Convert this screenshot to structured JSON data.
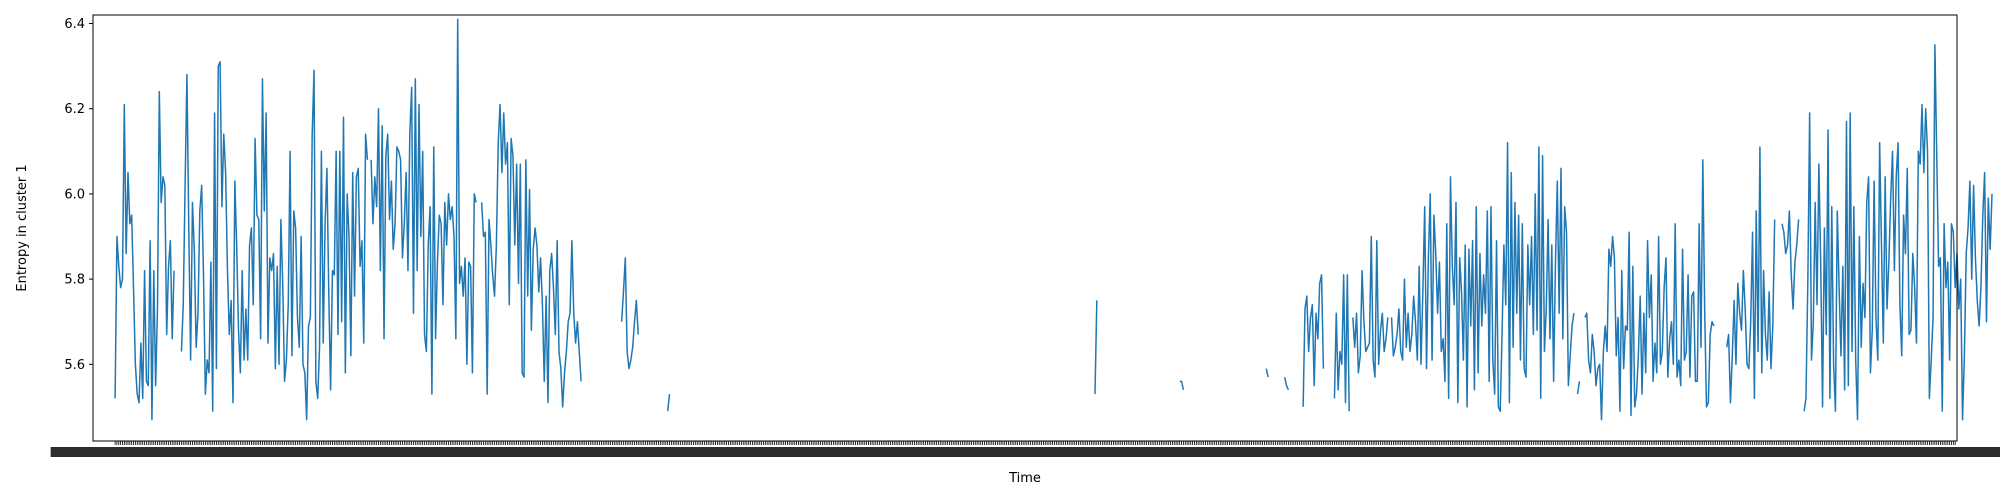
{
  "chart_data": {
    "type": "line",
    "title": "",
    "xlabel": "Time",
    "ylabel": "Entropy in cluster 1",
    "ylim": [
      5.42,
      6.42
    ],
    "yticks": [
      5.6,
      5.8,
      6.0,
      6.2,
      6.4
    ],
    "ytick_labels": [
      "5.6",
      "5.8",
      "6.0",
      "6.2",
      "6.4"
    ],
    "xlim": [
      -12,
      1000
    ],
    "grid": false,
    "legend": "none",
    "colors": {
      "line": "#1f77b4",
      "axes": "#000000",
      "background": "#ffffff"
    },
    "series": [
      {
        "segments": [
          {
            "start": 0,
            "values": [
              5.52,
              5.9,
              5.83,
              5.78,
              5.8,
              6.21,
              5.86,
              6.05,
              5.93,
              5.95,
              5.78,
              5.6,
              5.53,
              5.51,
              5.65,
              5.52,
              5.82,
              5.56,
              5.55,
              5.89,
              5.47,
              5.82,
              5.55,
              5.73,
              6.24,
              5.98,
              6.04,
              6.02,
              5.67,
              5.83,
              5.89,
              5.66,
              5.82
            ]
          },
          {
            "start": 36,
            "values": [
              5.63,
              5.74,
              6.02,
              6.28,
              5.92,
              5.61,
              5.98,
              5.87,
              5.64,
              5.72,
              5.96,
              6.02,
              5.81,
              5.53,
              5.61,
              5.58,
              5.84,
              5.49,
              6.19,
              5.59,
              6.3,
              6.31,
              5.97,
              6.14,
              6.05,
              5.82,
              5.67,
              5.75,
              5.51,
              6.03,
              5.88,
              5.68,
              5.58,
              5.82,
              5.61,
              5.73,
              5.61,
              5.88,
              5.92,
              5.74,
              6.13,
              5.95,
              5.94,
              5.66,
              6.27,
              5.96,
              6.19,
              5.65,
              5.85,
              5.82,
              5.86,
              5.59,
              5.83,
              5.6,
              5.94,
              5.79,
              5.56,
              5.61,
              5.74,
              6.1,
              5.62,
              5.96,
              5.92,
              5.71,
              5.64,
              5.9,
              5.6,
              5.58,
              5.47,
              5.69,
              5.71,
              6.14,
              6.29,
              5.56,
              5.52,
              5.64,
              6.1,
              5.65,
              5.93,
              6.06,
              5.77,
              5.54,
              5.82,
              5.81,
              6.1,
              5.67,
              6.1,
              5.7,
              6.18,
              5.58,
              6.0,
              5.9,
              5.62,
              6.05,
              5.76,
              6.04,
              6.06,
              5.83,
              5.89,
              5.65,
              6.14,
              6.08
            ]
          },
          {
            "start": 139,
            "values": [
              6.08,
              5.93,
              6.04,
              5.97,
              6.2,
              5.82,
              6.16,
              5.66,
              6.09,
              6.14,
              5.94,
              6.03,
              5.87,
              5.93,
              6.11,
              6.1,
              6.08,
              5.85,
              5.93,
              6.05,
              5.82,
              6.14,
              6.25,
              5.72,
              6.27,
              5.82,
              6.21,
              5.9,
              6.1,
              5.67,
              5.63,
              5.88,
              5.97,
              5.53,
              6.11,
              5.66,
              5.84,
              5.95,
              5.93,
              5.74,
              5.98,
              5.88,
              6.0,
              5.94,
              5.97,
              5.9,
              5.66,
              6.41,
              5.79,
              5.83,
              5.76,
              5.85,
              5.6,
              5.84,
              5.83,
              5.58,
              6.0,
              5.98
            ]
          },
          {
            "start": 199,
            "values": [
              5.98,
              5.9,
              5.91,
              5.53,
              5.94,
              5.88,
              5.81,
              5.76,
              5.88,
              6.12,
              6.21,
              6.05,
              6.19,
              6.07,
              6.12,
              5.74,
              6.13,
              6.09,
              5.88,
              6.07,
              5.79,
              6.07,
              5.58,
              5.57,
              6.08,
              5.76,
              6.01,
              5.68,
              5.87,
              5.92,
              5.88,
              5.77,
              5.85,
              5.74,
              5.56,
              5.76,
              5.51,
              5.82,
              5.86,
              5.78,
              5.67,
              5.89,
              5.63,
              5.59,
              5.5,
              5.58,
              5.63,
              5.7,
              5.72,
              5.89,
              5.72,
              5.65,
              5.7,
              5.63,
              5.56
            ]
          },
          {
            "start": 275,
            "values": [
              5.7,
              5.77,
              5.85,
              5.63,
              5.59,
              5.61,
              5.64,
              5.7,
              5.75,
              5.67
            ]
          },
          {
            "start": 300,
            "values": [
              5.49,
              5.53
            ]
          },
          {
            "start": 532,
            "values": [
              5.53,
              5.75
            ]
          },
          {
            "start": 578,
            "values": [
              5.56,
              5.56,
              5.54
            ]
          },
          {
            "start": 625,
            "values": [
              5.59,
              5.57
            ]
          },
          {
            "start": 635,
            "values": [
              5.57,
              5.55,
              5.54
            ]
          },
          {
            "start": 645,
            "values": [
              5.5,
              5.73,
              5.76,
              5.63,
              5.71,
              5.74,
              5.55,
              5.72,
              5.66,
              5.79,
              5.81,
              5.59
            ]
          },
          {
            "start": 662,
            "values": [
              5.52,
              5.72,
              5.54,
              5.63,
              5.6,
              5.81,
              5.51,
              5.81,
              5.49
            ]
          },
          {
            "start": 672,
            "values": [
              5.71,
              5.64,
              5.72,
              5.58,
              5.62,
              5.82,
              5.7,
              5.63,
              5.64,
              5.65,
              5.9,
              5.61,
              5.57,
              5.89,
              5.6,
              5.68,
              5.72,
              5.63,
              5.66,
              5.71
            ]
          },
          {
            "start": 693,
            "values": [
              5.71,
              5.62,
              5.64,
              5.67,
              5.73,
              5.63,
              5.61,
              5.8,
              5.64,
              5.72,
              5.63,
              5.67,
              5.76,
              5.7,
              5.61,
              5.83,
              5.6,
              5.77,
              5.97,
              5.59,
              5.85,
              6.0,
              5.61,
              5.95,
              5.86,
              5.72,
              5.84,
              5.63,
              5.66,
              5.56,
              5.93,
              5.52,
              6.04,
              5.83,
              5.74,
              5.98,
              5.51,
              5.85,
              5.77,
              5.61,
              5.88,
              5.5,
              5.87,
              5.69,
              5.89,
              5.54,
              5.97,
              5.58,
              5.86,
              5.69,
              5.81,
              5.72,
              5.96,
              5.56,
              5.97,
              5.61,
              5.53,
              5.89,
              5.5,
              5.49,
              5.67,
              5.88,
              5.74,
              6.12,
              5.51,
              6.05,
              5.64,
              5.98,
              5.72,
              5.95,
              5.61,
              5.93,
              5.59,
              5.57,
              5.88,
              5.74,
              5.9,
              5.67,
              6.0,
              5.68,
              6.11,
              5.52,
              6.09,
              5.63,
              5.73,
              5.94,
              5.66,
              5.88,
              5.56,
              5.84,
              6.03,
              5.72,
              6.06,
              5.66,
              5.97,
              5.91,
              5.55,
              5.62,
              5.69,
              5.72
            ]
          },
          {
            "start": 794,
            "values": [
              5.53,
              5.56
            ]
          },
          {
            "start": 798,
            "values": [
              5.71,
              5.72,
              5.61,
              5.58,
              5.67,
              5.63,
              5.55,
              5.59,
              5.6,
              5.47,
              5.63,
              5.69,
              5.63,
              5.87,
              5.83,
              5.9,
              5.85,
              5.62,
              5.71,
              5.49,
              5.82,
              5.59,
              5.69,
              5.68,
              5.91,
              5.48,
              5.83,
              5.5,
              5.53,
              5.62,
              5.76,
              5.53,
              5.72,
              5.58,
              5.89,
              5.71,
              5.81,
              5.56,
              5.65,
              5.58,
              5.9,
              5.6,
              5.63,
              5.78,
              5.85,
              5.57,
              5.66,
              5.7,
              5.6,
              5.93,
              5.57,
              5.61,
              5.55,
              5.87,
              5.61,
              5.63,
              5.81,
              5.57,
              5.76,
              5.77,
              5.56,
              5.56,
              5.93,
              5.64,
              6.08,
              5.73,
              5.5,
              5.51,
              5.67,
              5.7,
              5.69
            ]
          },
          {
            "start": 875,
            "values": [
              5.64,
              5.67,
              5.51,
              5.62,
              5.75,
              5.6,
              5.79,
              5.72,
              5.68,
              5.82,
              5.73,
              5.6,
              5.59,
              5.7,
              5.91,
              5.52,
              5.96,
              5.63,
              6.11,
              5.58,
              5.82,
              5.67,
              5.61,
              5.77,
              5.59,
              5.69,
              5.94
            ]
          },
          {
            "start": 905,
            "values": [
              5.93,
              5.91,
              5.86,
              5.88,
              5.96,
              5.81,
              5.73,
              5.84,
              5.88,
              5.94
            ]
          },
          {
            "start": 917,
            "values": [
              5.49,
              5.52,
              5.79,
              6.19,
              5.61,
              5.7,
              5.98,
              5.74,
              6.07,
              5.84,
              5.5,
              5.92,
              5.67,
              6.15,
              5.52,
              5.97,
              5.6,
              5.49,
              5.96,
              5.78,
              5.62,
              5.83,
              5.54,
              6.17,
              5.55,
              6.19,
              5.63,
              5.97,
              5.61,
              5.47,
              5.9,
              5.64,
              5.79,
              5.71,
              5.98,
              6.04,
              5.58,
              5.68,
              6.03,
              5.71,
              5.61,
              6.12,
              5.88,
              5.65,
              6.04,
              5.73,
              5.84,
              5.99,
              6.1,
              5.82,
              6.04,
              6.12,
              5.74,
              5.62,
              5.95,
              5.86,
              6.06,
              5.67,
              5.68,
              5.86,
              5.78,
              5.65,
              6.1,
              6.07,
              6.21,
              6.05,
              6.2,
              6.1,
              5.52,
              5.61,
              5.71,
              6.35,
              6.09,
              5.83,
              5.85,
              5.49,
              5.93,
              5.78,
              5.84,
              5.61,
              5.93,
              5.91,
              5.78,
              5.86,
              5.73,
              5.8,
              5.47,
              5.62,
              5.86,
              5.92,
              6.03,
              5.8,
              6.02,
              5.85,
              5.75,
              5.69,
              5.78,
              5.95,
              6.05,
              5.7,
              5.99,
              5.87,
              6.0
            ]
          }
        ]
      }
    ]
  }
}
